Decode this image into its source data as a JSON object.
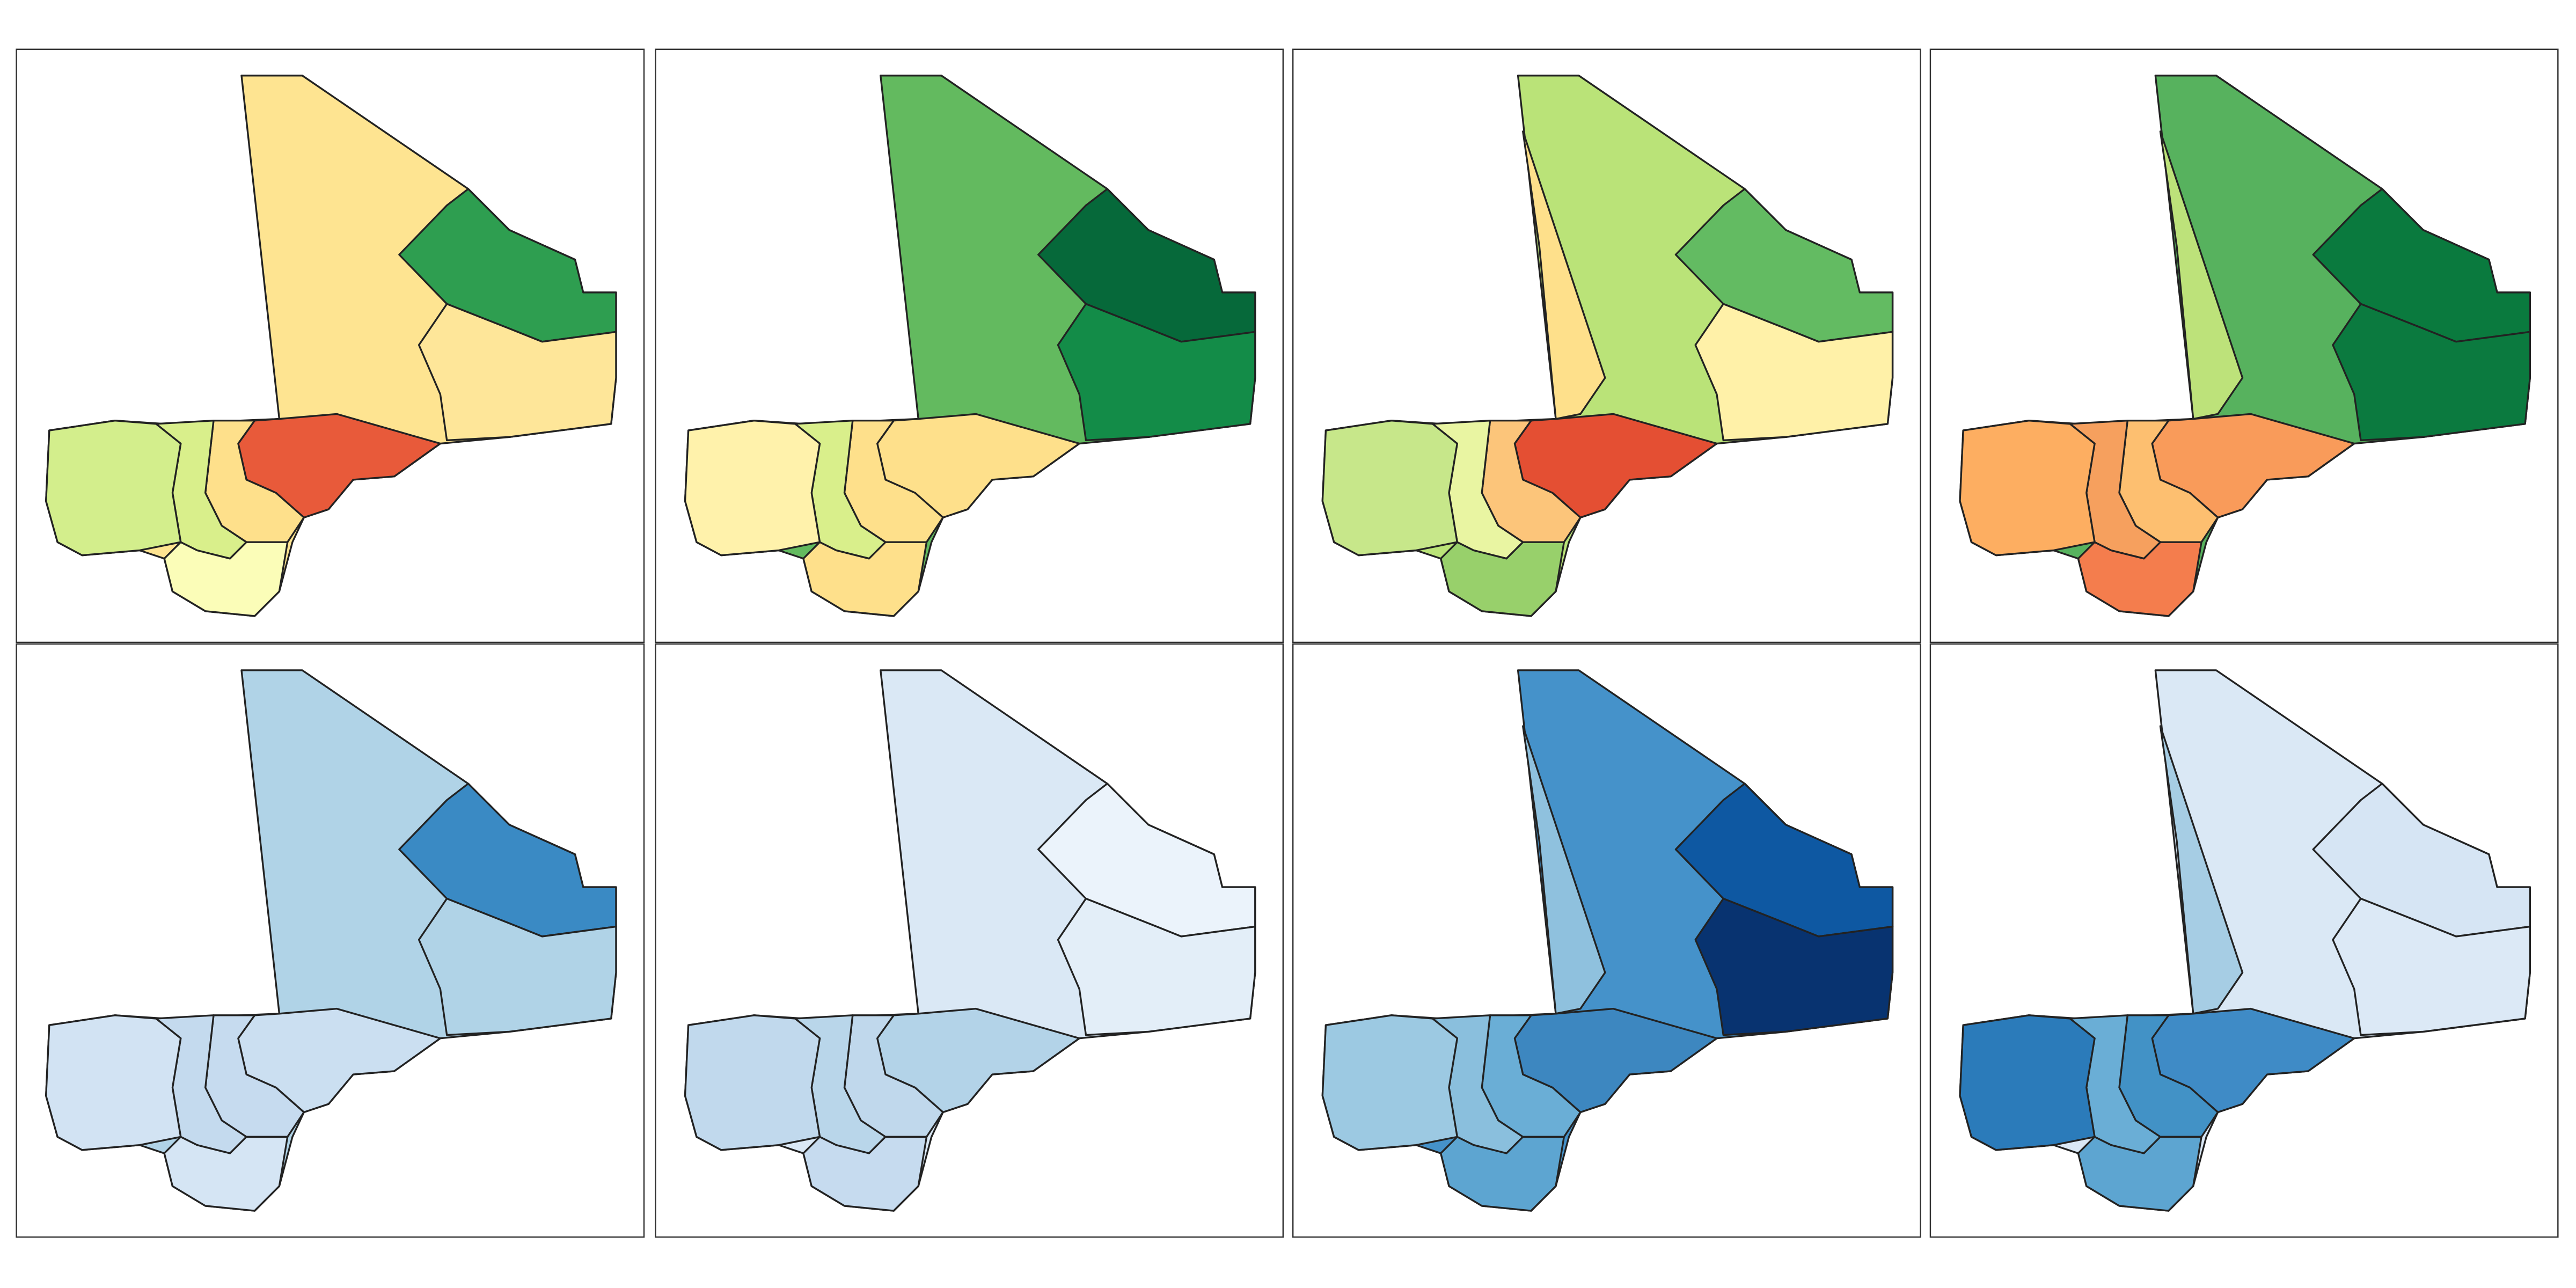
{
  "panels": [
    {
      "fills": [
        "#fee491",
        "#2e9e50",
        "#fee699",
        "#e85a3a",
        "#fee08b",
        "#d9ef8b",
        "#d3ee8c",
        "#fbfdb8"
      ]
    },
    {
      "fills": [
        "#63ba5f",
        "#06693a",
        "#138c48",
        "#fee08b",
        "#fee08b",
        "#d9ef8b",
        "#fff2ab",
        "#fee08b"
      ]
    },
    {
      "fills": [
        "#bae378",
        "#63bb62",
        "#fff1a8",
        "#e44f33",
        "#fcc57a",
        "#e9f5a2",
        "#c7e78a",
        "#98d06b",
        "#fee08b"
      ]
    },
    {
      "fills": [
        "#57b25e",
        "#0a7a3e",
        "#0b7a3f",
        "#f99b5a",
        "#fdbf70",
        "#f6a05e",
        "#fdae61",
        "#f47d4d",
        "#bde27a"
      ]
    },
    {
      "fills": [
        "#b0d3e7",
        "#3a8ac4",
        "#b0d3e7",
        "#cbdff1",
        "#c6dbef",
        "#c4daee",
        "#d2e3f3",
        "#d5e5f4"
      ]
    },
    {
      "fills": [
        "#dae8f5",
        "#ebf3fb",
        "#e3eef8",
        "#b3d3e8",
        "#c0d8ec",
        "#b9d6ea",
        "#c1d9ed",
        "#c6dbef"
      ]
    },
    {
      "fills": [
        "#4592ca",
        "#0e58a2",
        "#083370",
        "#3d87c0",
        "#6aaed6",
        "#8abfdd",
        "#9cc9e2",
        "#5da5d1",
        "#8fc1de"
      ]
    },
    {
      "fills": [
        "#dae8f5",
        "#d6e5f4",
        "#dce9f6",
        "#3f8bc6",
        "#4292c6",
        "#6aaed6",
        "#2b7bba",
        "#5da5d1",
        "#a6cde4"
      ]
    }
  ]
}
